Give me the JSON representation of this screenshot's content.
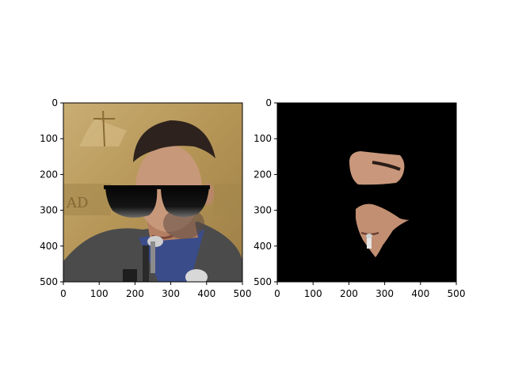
{
  "chart_data": [
    {
      "type": "image",
      "title": "",
      "xlabel": "",
      "ylabel": "",
      "xlim": [
        0,
        500
      ],
      "ylim": [
        500,
        0
      ],
      "xticks": [
        0,
        100,
        200,
        300,
        400,
        500
      ],
      "yticks": [
        0,
        100,
        200,
        300,
        400,
        500
      ],
      "content_icon": "photo-face-with-sunglasses",
      "background_color": "#b89a5e"
    },
    {
      "type": "image",
      "title": "",
      "xlabel": "",
      "ylabel": "",
      "xlim": [
        0,
        500
      ],
      "ylim": [
        500,
        0
      ],
      "xticks": [
        0,
        100,
        200,
        300,
        400,
        500
      ],
      "yticks": [
        0,
        100,
        200,
        300,
        400,
        500
      ],
      "content_icon": "masked-face-skin-region",
      "background_color": "#000000"
    }
  ]
}
